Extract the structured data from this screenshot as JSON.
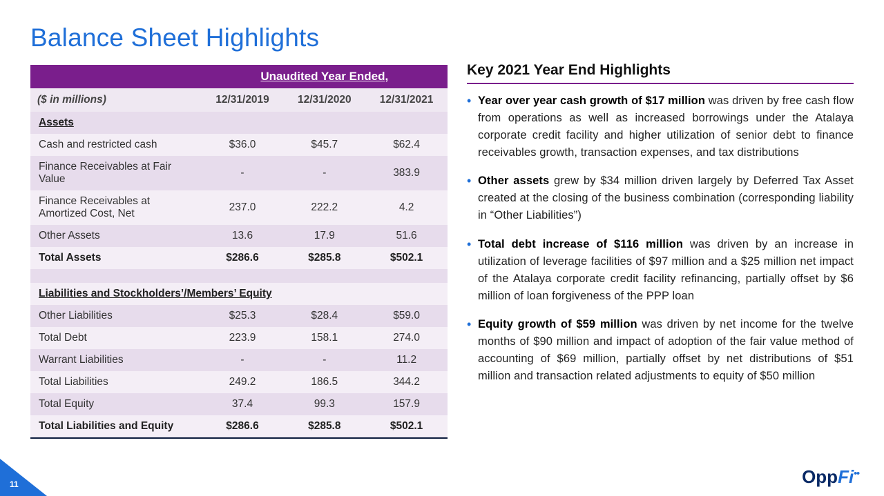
{
  "title": "Balance Sheet Highlights",
  "page_number": "11",
  "logo": {
    "part1": "Opp",
    "part2": "Fi",
    "dots": "••"
  },
  "colors": {
    "title": "#1f6fd8",
    "header_bg": "#7a1e8c",
    "row_light": "#f4eef6",
    "row_dark": "#e7dcec",
    "accent": "#1f6fd8",
    "text": "#222222"
  },
  "table": {
    "super_header": "Unaudited Year Ended,",
    "unit_label": "($ in millions)",
    "columns": [
      "12/31/2019",
      "12/31/2020",
      "12/31/2021"
    ],
    "sections": [
      {
        "title": "Assets",
        "rows": [
          {
            "label": "Cash and restricted cash",
            "v": [
              "$36.0",
              "$45.7",
              "$62.4"
            ]
          },
          {
            "label": "Finance Receivables at Fair Value",
            "v": [
              "-",
              "-",
              "383.9"
            ]
          },
          {
            "label": "Finance Receivables at Amortized Cost, Net",
            "v": [
              "237.0",
              "222.2",
              "4.2"
            ]
          },
          {
            "label": "Other Assets",
            "v": [
              "13.6",
              "17.9",
              "51.6"
            ]
          }
        ],
        "total": {
          "label": "Total Assets",
          "v": [
            "$286.6",
            "$285.8",
            "$502.1"
          ]
        }
      },
      {
        "title": "Liabilities and Stockholders’/Members’ Equity",
        "rows": [
          {
            "label": "Other Liabilities",
            "v": [
              "$25.3",
              "$28.4",
              "$59.0"
            ]
          },
          {
            "label": "Total Debt",
            "v": [
              "223.9",
              "158.1",
              "274.0"
            ]
          },
          {
            "label": "Warrant Liabilities",
            "v": [
              "-",
              "-",
              "11.2"
            ]
          },
          {
            "label": "Total Liabilities",
            "v": [
              "249.2",
              "186.5",
              "344.2"
            ]
          },
          {
            "label": "Total Equity",
            "v": [
              "37.4",
              "99.3",
              "157.9"
            ]
          }
        ],
        "total": {
          "label": "Total Liabilities and Equity",
          "v": [
            "$286.6",
            "$285.8",
            "$502.1"
          ]
        }
      }
    ]
  },
  "highlights": {
    "heading": "Key 2021 Year End Highlights",
    "items": [
      {
        "bold": "Year over year cash growth of $17 million",
        "rest": " was driven by free cash flow from operations as well as increased borrowings under the Atalaya corporate credit facility and higher utilization of senior debt to finance receivables growth, transaction expenses, and tax distributions"
      },
      {
        "bold": "Other assets",
        "rest": " grew by $34 million driven largely by Deferred Tax Asset created at the closing of the business combination (corresponding liability in “Other Liabilities”)"
      },
      {
        "bold": "Total debt increase of $116 million",
        "rest": " was driven by an increase in utilization of leverage facilities of $97 million and a $25 million net impact of the Atalaya corporate credit facility refinancing, partially offset by $6 million of loan forgiveness of the PPP loan"
      },
      {
        "bold": "Equity growth of $59 million",
        "rest": " was driven by net income for the twelve months of $90 million and impact of adoption of the fair value method of accounting of $69 million, partially offset by net distributions of $51 million and transaction related adjustments to equity of $50 million"
      }
    ]
  }
}
